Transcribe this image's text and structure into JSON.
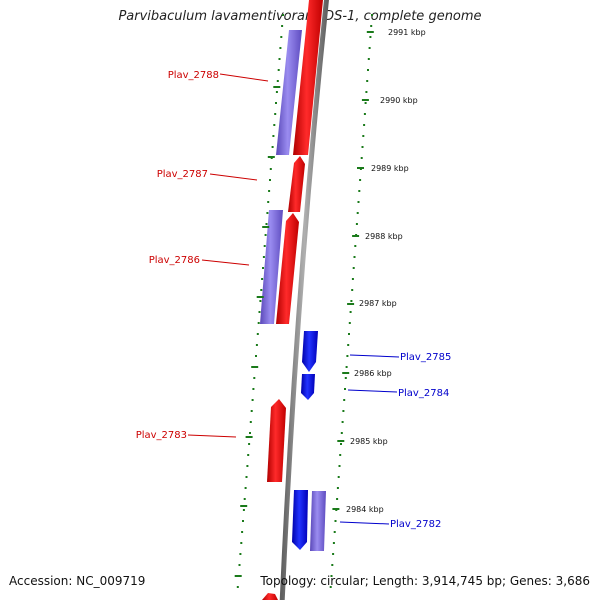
{
  "title": "Parvibaculum lavamentivorans DS-1, complete genome",
  "accession_text": "Accession: NC_009719",
  "summary_text": "Topology: circular; Length: 3,914,745 bp; Genes: 3,686",
  "colors": {
    "forward_gene": "#ff0000",
    "reverse_gene": "#0000ff",
    "cds_light": "#7b68d6",
    "backbone": "#888888",
    "ticks": "#1a7a1a",
    "red_label": "#cc0000",
    "blue_label": "#0000cc"
  },
  "scale_labels": [
    "2991 kbp",
    "2990 kbp",
    "2989 kbp",
    "2988 kbp",
    "2987 kbp",
    "2986 kbp",
    "2985 kbp",
    "2984 kbp"
  ],
  "gene_labels": [
    {
      "name": "Plav_2788",
      "strand": "forward"
    },
    {
      "name": "Plav_2787",
      "strand": "forward"
    },
    {
      "name": "Plav_2786",
      "strand": "forward"
    },
    {
      "name": "Plav_2783",
      "strand": "forward"
    },
    {
      "name": "Plav_2785",
      "strand": "reverse"
    },
    {
      "name": "Plav_2784",
      "strand": "reverse"
    },
    {
      "name": "Plav_2782",
      "strand": "reverse"
    }
  ]
}
